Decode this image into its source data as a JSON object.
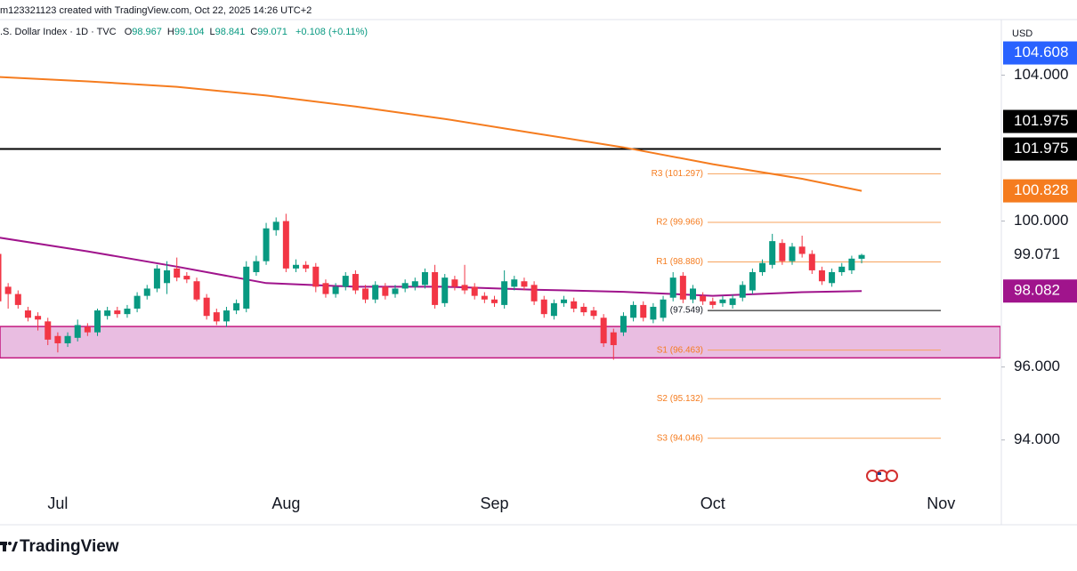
{
  "header": {
    "credit": "m123321123 created with TradingView.com, Oct 22, 2025 14:26 UTC+2",
    "symbol": ".S. Dollar Index · 1D · TVC",
    "ohlc": [
      {
        "key": "O",
        "value": "98.967"
      },
      {
        "key": "H",
        "value": "99.104"
      },
      {
        "key": "L",
        "value": "98.841"
      },
      {
        "key": "C",
        "value": "99.071"
      }
    ],
    "change": "+0.108 (+0.11%)"
  },
  "chart_data": {
    "type": "candlestick",
    "categories": [
      null,
      null,
      null,
      null,
      null,
      null,
      "Jul",
      null,
      null,
      null,
      null,
      null,
      null,
      null,
      null,
      null,
      null,
      null,
      null,
      null,
      null,
      null,
      null,
      null,
      null,
      null,
      null,
      null,
      null,
      "Aug",
      null,
      null,
      null,
      null,
      null,
      null,
      null,
      null,
      null,
      null,
      null,
      null,
      null,
      null,
      null,
      null,
      null,
      null,
      null,
      null,
      "Sep",
      null,
      null,
      null,
      null,
      null,
      null,
      null,
      null,
      null,
      null,
      null,
      null,
      null,
      null,
      null,
      null,
      null,
      null,
      null,
      null,
      null,
      "Oct",
      null,
      null,
      null,
      null,
      null,
      null,
      null,
      null,
      null,
      null,
      null,
      null,
      null,
      null,
      null,
      null,
      null,
      null,
      null,
      null,
      null,
      null,
      "Nov"
    ],
    "open": [
      99.1,
      98.2,
      98.0,
      97.55,
      97.4,
      97.25,
      96.85,
      96.65,
      96.8,
      97.1,
      96.95,
      97.4,
      97.55,
      97.45,
      97.6,
      97.95,
      98.15,
      98.3,
      98.7,
      98.5,
      98.35,
      97.9,
      97.5,
      97.25,
      97.55,
      97.6,
      98.6,
      98.9,
      99.75,
      100.0,
      98.7,
      98.8,
      98.75,
      98.3,
      98.0,
      98.2,
      98.55,
      98.15,
      97.85,
      98.2,
      98.0,
      98.15,
      98.2,
      98.25,
      98.6,
      97.75,
      98.4,
      98.25,
      98.2,
      97.95,
      97.85,
      97.7,
      98.2,
      98.35,
      98.25,
      97.85,
      97.4,
      97.75,
      97.8,
      97.65,
      97.55,
      97.35,
      96.95,
      96.95,
      97.35,
      97.7,
      97.3,
      97.35,
      97.9,
      98.5,
      97.85,
      97.95,
      97.8,
      97.75,
      97.7,
      97.9,
      98.1,
      98.6,
      98.8,
      99.4,
      98.9,
      99.3,
      99.1,
      98.65,
      98.3,
      98.6,
      98.65,
      98.967,
      null,
      null,
      null,
      null,
      null,
      null,
      null,
      null
    ],
    "high": [
      99.2,
      98.3,
      98.1,
      97.65,
      97.5,
      97.35,
      96.95,
      96.95,
      97.3,
      97.2,
      97.6,
      97.65,
      97.65,
      97.7,
      98.05,
      98.25,
      98.8,
      98.9,
      99.0,
      98.6,
      98.45,
      98.0,
      97.6,
      97.65,
      97.85,
      98.9,
      99.05,
      99.95,
      100.1,
      100.2,
      98.95,
      98.9,
      98.85,
      98.4,
      98.3,
      98.6,
      98.65,
      98.25,
      98.35,
      98.3,
      98.25,
      98.4,
      98.45,
      98.7,
      98.8,
      98.55,
      98.5,
      98.8,
      98.3,
      98.05,
      97.95,
      98.65,
      98.5,
      98.45,
      98.35,
      97.95,
      97.85,
      97.95,
      97.9,
      97.75,
      97.65,
      97.45,
      97.05,
      97.5,
      97.8,
      97.8,
      97.75,
      97.95,
      98.6,
      98.6,
      98.25,
      98.05,
      97.9,
      97.95,
      97.98,
      98.35,
      98.7,
      98.95,
      99.65,
      99.5,
      99.4,
      99.6,
      99.2,
      98.75,
      98.7,
      98.85,
      99.05,
      99.104,
      null,
      null,
      null,
      null,
      null,
      null,
      null,
      null
    ],
    "low": [
      97.7,
      97.6,
      97.6,
      97.25,
      97.0,
      96.6,
      96.4,
      96.55,
      96.7,
      96.85,
      96.85,
      97.3,
      97.35,
      97.35,
      97.5,
      97.85,
      98.05,
      98.0,
      98.35,
      98.3,
      97.8,
      97.3,
      97.15,
      97.1,
      97.45,
      97.5,
      98.5,
      98.8,
      99.6,
      98.6,
      98.6,
      98.6,
      98.05,
      97.9,
      97.9,
      98.1,
      98.0,
      97.75,
      97.75,
      97.85,
      97.9,
      98.05,
      98.1,
      98.15,
      97.6,
      97.65,
      98.1,
      98.0,
      97.85,
      97.75,
      97.65,
      97.6,
      98.1,
      98.1,
      97.7,
      97.35,
      97.3,
      97.65,
      97.5,
      97.4,
      97.3,
      96.55,
      96.2,
      96.85,
      97.25,
      97.25,
      97.2,
      97.25,
      97.8,
      97.75,
      97.75,
      97.7,
      97.6,
      97.65,
      97.6,
      97.8,
      98.0,
      98.5,
      98.7,
      98.8,
      98.8,
      99.0,
      98.55,
      98.25,
      98.2,
      98.5,
      98.55,
      98.841,
      null,
      null,
      null,
      null,
      null,
      null,
      null,
      null
    ],
    "close": [
      97.8,
      98.0,
      97.7,
      97.35,
      97.3,
      96.75,
      96.65,
      96.85,
      97.15,
      96.95,
      97.55,
      97.55,
      97.45,
      97.6,
      97.95,
      98.15,
      98.7,
      98.65,
      98.45,
      98.4,
      97.85,
      97.4,
      97.25,
      97.55,
      97.75,
      98.75,
      98.9,
      99.8,
      99.98,
      98.7,
      98.8,
      98.7,
      98.2,
      98.0,
      98.2,
      98.5,
      98.1,
      97.85,
      98.25,
      97.95,
      98.15,
      98.3,
      98.35,
      98.6,
      97.7,
      98.45,
      98.2,
      98.1,
      97.95,
      97.85,
      97.75,
      98.35,
      98.4,
      98.2,
      97.8,
      97.45,
      97.75,
      97.85,
      97.6,
      97.5,
      97.4,
      96.65,
      96.6,
      97.4,
      97.7,
      97.35,
      97.65,
      97.85,
      98.45,
      97.85,
      98.15,
      97.8,
      97.7,
      97.85,
      97.88,
      98.25,
      98.6,
      98.85,
      99.45,
      98.9,
      99.3,
      99.1,
      98.65,
      98.35,
      98.6,
      98.75,
      98.97,
      99.071,
      null,
      null,
      null,
      null,
      null,
      null,
      null,
      null
    ],
    "up_color": "#089981",
    "down_color": "#f23645",
    "ylim": [
      92.7,
      105.45
    ],
    "yticks": [
      {
        "value": 104,
        "label": "104.000"
      },
      {
        "value": 100,
        "label": "100.000"
      },
      {
        "value": 96,
        "label": "96.000"
      },
      {
        "value": 94,
        "label": "94.000"
      }
    ],
    "currency": "USD",
    "lines": [
      {
        "color": "#f57c1f",
        "x": [
          0,
          9,
          18,
          27,
          36,
          45,
          54,
          63,
          72,
          81,
          87
        ],
        "values": [
          103.95,
          103.83,
          103.68,
          103.44,
          103.14,
          102.8,
          102.41,
          102.02,
          101.56,
          101.16,
          100.828
        ]
      },
      {
        "color": "#a0148c",
        "x": [
          0,
          9,
          18,
          27,
          36,
          45,
          54,
          63,
          72,
          81,
          87
        ],
        "values": [
          99.55,
          99.17,
          98.75,
          98.3,
          98.2,
          98.2,
          98.12,
          98.06,
          97.95,
          98.05,
          98.082
        ]
      }
    ],
    "zone": {
      "from": 96.25,
      "to": 97.11,
      "color": "#e9bde1",
      "border": "#c2187f"
    },
    "level": {
      "value": 101.975,
      "color": "#000000"
    },
    "pivots": [
      {
        "label": "R3 (101.297)",
        "value": 101.297,
        "color": "#f7a35c"
      },
      {
        "label": "R2 (99.966)",
        "value": 99.966,
        "color": "#f7a35c"
      },
      {
        "label": "R1 (98.880)",
        "value": 98.88,
        "color": "#f7a35c"
      },
      {
        "label": "(97.549)",
        "value": 97.549,
        "color": "#000000"
      },
      {
        "label": "S1 (96.463)",
        "value": 96.463,
        "color": "#f7a35c"
      },
      {
        "label": "S2 (95.132)",
        "value": 95.132,
        "color": "#f7a35c"
      },
      {
        "label": "S3 (94.046)",
        "value": 94.046,
        "color": "#f7a35c"
      }
    ],
    "price_labels": [
      {
        "value": 104.608,
        "label": "104.608",
        "color": "#2962ff"
      },
      {
        "value": 101.975,
        "label": "101.975",
        "color": "#000000"
      },
      {
        "value": 101.975,
        "label": "101.975",
        "color": "#000000"
      },
      {
        "value": 100.828,
        "label": "100.828",
        "color": "#f57c1f"
      },
      {
        "value": 99.071,
        "label": "99.071"
      },
      {
        "value": 98.082,
        "label": "98.082",
        "color": "#a0148c"
      }
    ]
  },
  "branding": "TradingView"
}
